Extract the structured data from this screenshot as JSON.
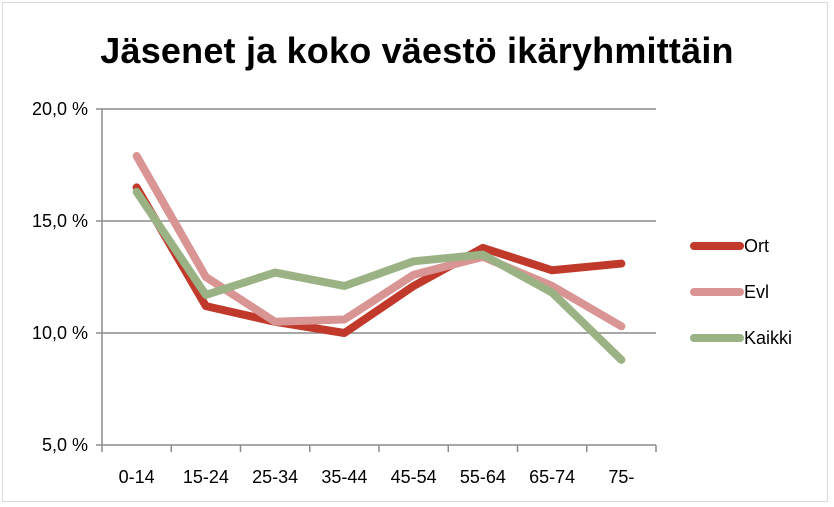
{
  "chart_data": {
    "type": "line",
    "title": "Jäsenet ja koko väestö ikäryhmittäin",
    "xlabel": "",
    "ylabel": "",
    "categories": [
      "0-14",
      "15-24",
      "25-34",
      "35-44",
      "45-54",
      "55-64",
      "65-74",
      "75-"
    ],
    "y_ticks": [
      5.0,
      10.0,
      15.0,
      20.0
    ],
    "y_tick_labels": [
      "5,0 %",
      "10,0 %",
      "15,0 %",
      "20,0 %"
    ],
    "ylim": [
      5.0,
      20.0
    ],
    "grid": true,
    "legend_position": "right",
    "series": [
      {
        "name": "Ort",
        "color": "#c0392b",
        "values": [
          16.5,
          11.2,
          10.5,
          10.0,
          12.1,
          13.8,
          12.8,
          13.1
        ]
      },
      {
        "name": "Evl",
        "color": "#d99594",
        "values": [
          17.9,
          12.5,
          10.5,
          10.6,
          12.6,
          13.4,
          12.1,
          10.3
        ]
      },
      {
        "name": "Kaikki",
        "color": "#9bb384",
        "values": [
          16.3,
          11.7,
          12.7,
          12.1,
          13.2,
          13.5,
          11.8,
          8.8
        ]
      }
    ]
  }
}
